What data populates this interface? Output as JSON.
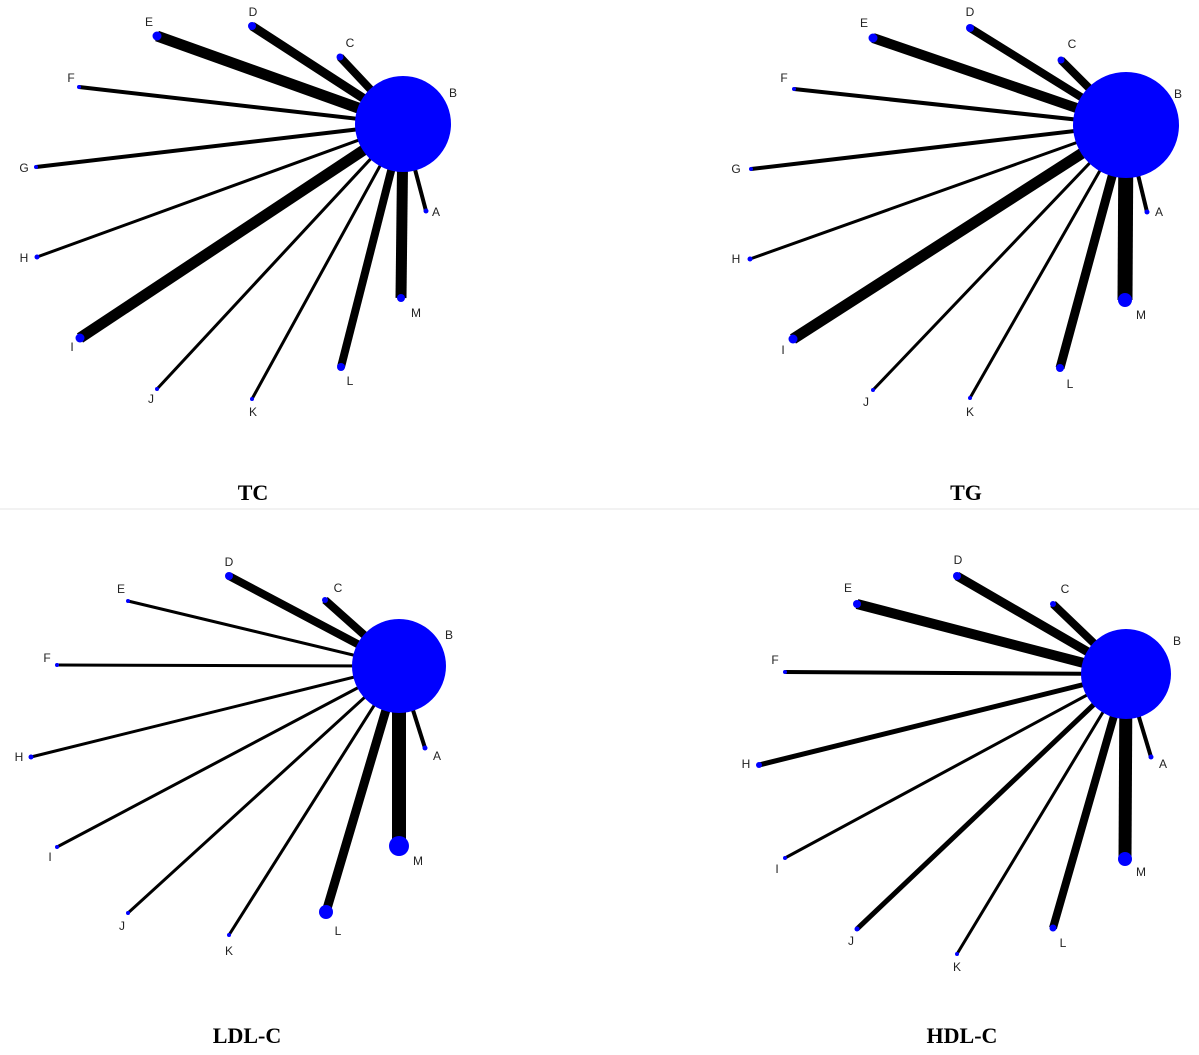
{
  "style": {
    "node_color": "#0000ff",
    "edge_color": "#000000",
    "divider_color": "#e6e6e6"
  },
  "panels": [
    {
      "title": "TC",
      "hub": "B",
      "nodes": [
        "A",
        "B",
        "C",
        "D",
        "E",
        "F",
        "G",
        "H",
        "I",
        "J",
        "K",
        "L",
        "M"
      ],
      "edges": [
        [
          "B",
          "A"
        ],
        [
          "B",
          "C"
        ],
        [
          "B",
          "D"
        ],
        [
          "B",
          "E"
        ],
        [
          "B",
          "F"
        ],
        [
          "B",
          "G"
        ],
        [
          "B",
          "H"
        ],
        [
          "B",
          "I"
        ],
        [
          "B",
          "J"
        ],
        [
          "B",
          "K"
        ],
        [
          "B",
          "L"
        ],
        [
          "B",
          "M"
        ]
      ]
    },
    {
      "title": "TG",
      "hub": "B",
      "nodes": [
        "A",
        "B",
        "C",
        "D",
        "E",
        "F",
        "G",
        "H",
        "I",
        "J",
        "K",
        "L",
        "M"
      ],
      "edges": [
        [
          "B",
          "A"
        ],
        [
          "B",
          "C"
        ],
        [
          "B",
          "D"
        ],
        [
          "B",
          "E"
        ],
        [
          "B",
          "F"
        ],
        [
          "B",
          "G"
        ],
        [
          "B",
          "H"
        ],
        [
          "B",
          "I"
        ],
        [
          "B",
          "J"
        ],
        [
          "B",
          "K"
        ],
        [
          "B",
          "L"
        ],
        [
          "B",
          "M"
        ]
      ]
    },
    {
      "title": "LDL-C",
      "hub": "B",
      "nodes": [
        "A",
        "B",
        "C",
        "D",
        "E",
        "F",
        "H",
        "I",
        "J",
        "K",
        "L",
        "M"
      ],
      "edges": [
        [
          "B",
          "A"
        ],
        [
          "B",
          "C"
        ],
        [
          "B",
          "D"
        ],
        [
          "B",
          "E"
        ],
        [
          "B",
          "F"
        ],
        [
          "B",
          "H"
        ],
        [
          "B",
          "I"
        ],
        [
          "B",
          "J"
        ],
        [
          "B",
          "K"
        ],
        [
          "B",
          "L"
        ],
        [
          "B",
          "M"
        ]
      ]
    },
    {
      "title": "HDL-C",
      "hub": "B",
      "nodes": [
        "A",
        "B",
        "C",
        "D",
        "E",
        "F",
        "H",
        "I",
        "J",
        "K",
        "L",
        "M"
      ],
      "edges": [
        [
          "B",
          "A"
        ],
        [
          "B",
          "C"
        ],
        [
          "B",
          "D"
        ],
        [
          "B",
          "E"
        ],
        [
          "B",
          "F"
        ],
        [
          "B",
          "H"
        ],
        [
          "B",
          "I"
        ],
        [
          "B",
          "J"
        ],
        [
          "B",
          "K"
        ],
        [
          "B",
          "L"
        ],
        [
          "B",
          "M"
        ]
      ]
    }
  ]
}
